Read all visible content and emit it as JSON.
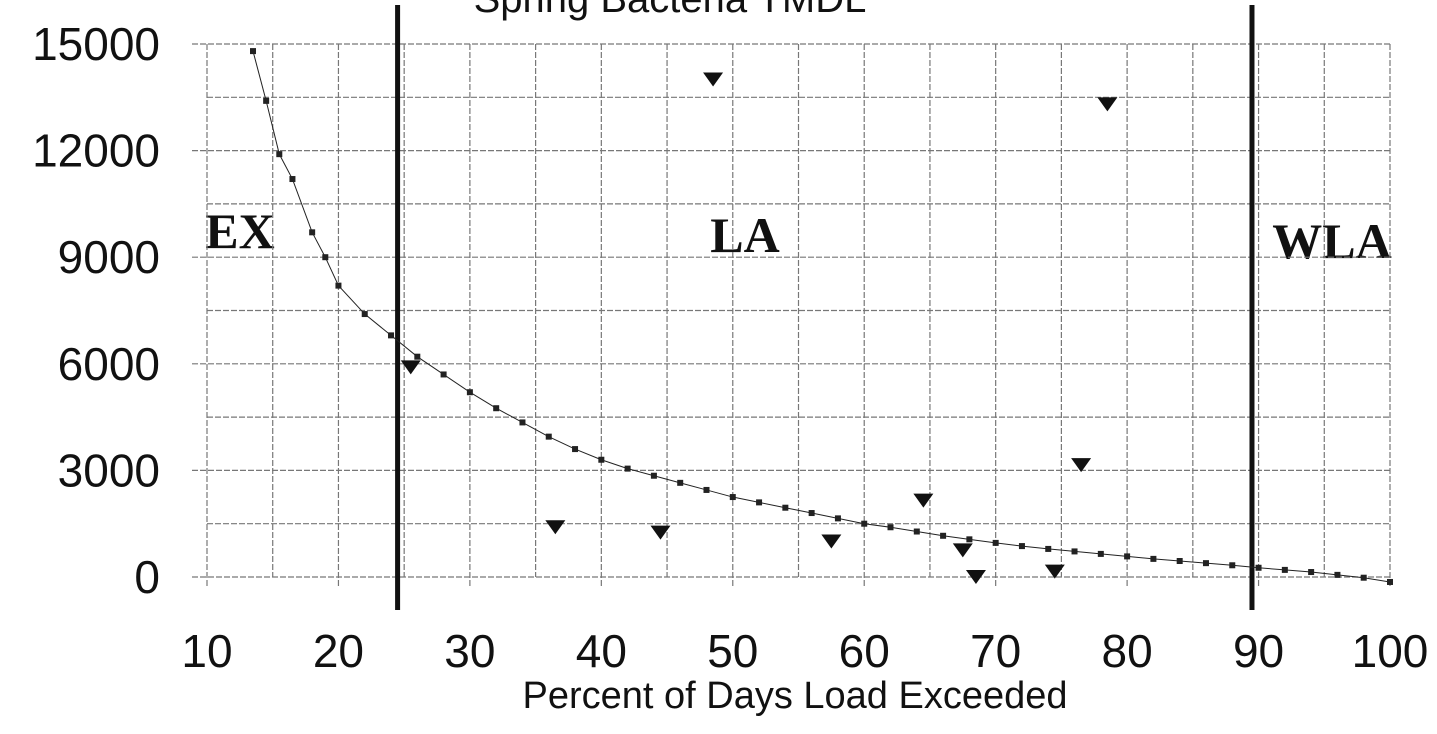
{
  "chart_data": {
    "type": "scatter",
    "title": "Spring Bacteria TMDL",
    "x_label": "Percent of Days Load Exceeded",
    "xlim": [
      10,
      100
    ],
    "ylim": [
      0,
      15000
    ],
    "xticks": [
      10,
      20,
      30,
      40,
      50,
      60,
      70,
      80,
      90,
      100
    ],
    "yticks": [
      0,
      3000,
      6000,
      9000,
      12000,
      15000
    ],
    "minor_xticks": [
      15,
      25,
      35,
      45,
      55,
      65,
      75,
      85,
      95
    ],
    "minor_yticks": [
      1500,
      4500,
      7500,
      10500,
      13500
    ],
    "grid": true,
    "vlines": [
      24.5,
      89.5
    ],
    "annotations": [
      "EX",
      "LA",
      "WLA"
    ],
    "series": [
      {
        "marker": "square",
        "line": true,
        "color": "#222",
        "x": [
          13.5,
          14.5,
          15.5,
          16.5,
          18,
          19,
          20,
          22,
          24,
          26,
          28,
          30,
          32,
          34,
          36,
          38,
          40,
          42,
          44,
          46,
          48,
          50,
          52,
          54,
          56,
          58,
          60,
          62,
          64,
          66,
          68,
          70,
          72,
          74,
          76,
          78,
          80,
          82,
          84,
          86,
          88,
          90,
          92,
          94,
          96,
          98,
          100
        ],
        "values": [
          14800,
          13400,
          11900,
          11200,
          9700,
          9000,
          8200,
          7400,
          6800,
          6200,
          5700,
          5200,
          4750,
          4350,
          3950,
          3600,
          3300,
          3050,
          2850,
          2650,
          2450,
          2250,
          2100,
          1950,
          1800,
          1650,
          1500,
          1400,
          1280,
          1160,
          1060,
          960,
          870,
          790,
          720,
          650,
          580,
          510,
          450,
          390,
          330,
          260,
          200,
          140,
          60,
          -20,
          -140
        ]
      },
      {
        "marker": "triangle",
        "line": false,
        "color": "#111",
        "x": [
          25.5,
          36.5,
          44.5,
          48.5,
          57.5,
          64.5,
          67.5,
          68.5,
          74.5,
          76.5,
          78.5
        ],
        "values": [
          5900,
          1400,
          1250,
          14000,
          1000,
          2150,
          750,
          0,
          150,
          3150,
          13300
        ]
      }
    ]
  }
}
